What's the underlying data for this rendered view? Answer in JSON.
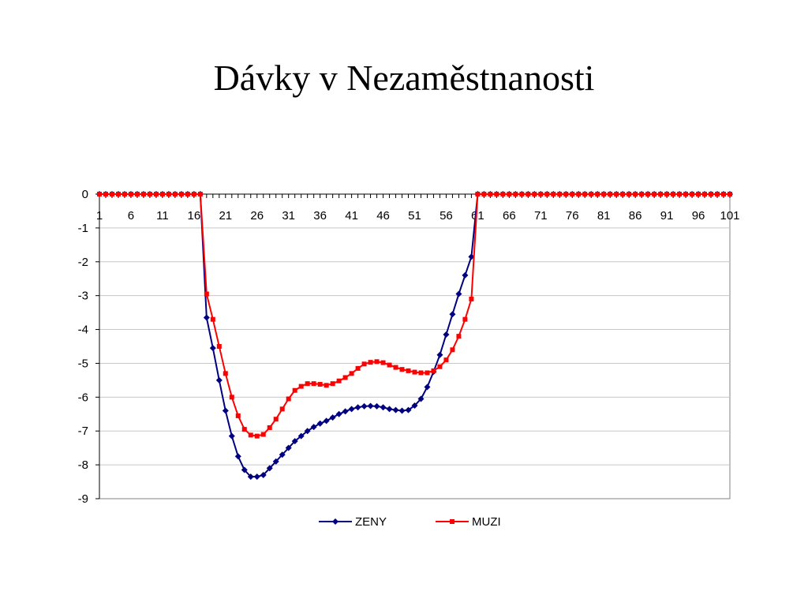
{
  "slide": {
    "title": "Dávky v Nezaměstnanosti"
  },
  "chart_data": {
    "type": "line",
    "title": "",
    "xlabel": "",
    "ylabel": "",
    "xlim": [
      1,
      101
    ],
    "ylim": [
      -9,
      0
    ],
    "x_tick_labels": [
      "1",
      "6",
      "11",
      "16",
      "21",
      "26",
      "31",
      "36",
      "41",
      "46",
      "51",
      "56",
      "61",
      "66",
      "71",
      "76",
      "81",
      "86",
      "91",
      "96",
      "101"
    ],
    "y_tick_labels": [
      "0",
      "-1",
      "-2",
      "-3",
      "-4",
      "-5",
      "-6",
      "-7",
      "-8",
      "-9"
    ],
    "grid": "horizontal",
    "legend_position": "bottom",
    "x": [
      1,
      2,
      3,
      4,
      5,
      6,
      7,
      8,
      9,
      10,
      11,
      12,
      13,
      14,
      15,
      16,
      17,
      18,
      19,
      20,
      21,
      22,
      23,
      24,
      25,
      26,
      27,
      28,
      29,
      30,
      31,
      32,
      33,
      34,
      35,
      36,
      37,
      38,
      39,
      40,
      41,
      42,
      43,
      44,
      45,
      46,
      47,
      48,
      49,
      50,
      51,
      52,
      53,
      54,
      55,
      56,
      57,
      58,
      59,
      60,
      61,
      62,
      63,
      64,
      65,
      66,
      67,
      68,
      69,
      70,
      71,
      72,
      73,
      74,
      75,
      76,
      77,
      78,
      79,
      80,
      81,
      82,
      83,
      84,
      85,
      86,
      87,
      88,
      89,
      90,
      91,
      92,
      93,
      94,
      95,
      96,
      97,
      98,
      99,
      100,
      101
    ],
    "series": [
      {
        "name": "ZENY",
        "color": "#000080",
        "marker": "diamond",
        "values": [
          0,
          0,
          0,
          0,
          0,
          0,
          0,
          0,
          0,
          0,
          0,
          0,
          0,
          0,
          0,
          0,
          0,
          -3.65,
          -4.55,
          -5.5,
          -6.4,
          -7.15,
          -7.75,
          -8.15,
          -8.35,
          -8.35,
          -8.3,
          -8.1,
          -7.9,
          -7.7,
          -7.5,
          -7.3,
          -7.15,
          -7.0,
          -6.88,
          -6.78,
          -6.7,
          -6.6,
          -6.5,
          -6.42,
          -6.35,
          -6.3,
          -6.27,
          -6.26,
          -6.27,
          -6.3,
          -6.35,
          -6.38,
          -6.4,
          -6.38,
          -6.25,
          -6.05,
          -5.7,
          -5.25,
          -4.75,
          -4.15,
          -3.55,
          -2.95,
          -2.4,
          -1.85,
          0,
          0,
          0,
          0,
          0,
          0,
          0,
          0,
          0,
          0,
          0,
          0,
          0,
          0,
          0,
          0,
          0,
          0,
          0,
          0,
          0,
          0,
          0,
          0,
          0,
          0,
          0,
          0,
          0,
          0,
          0,
          0,
          0,
          0,
          0,
          0,
          0,
          0,
          0,
          0,
          0
        ]
      },
      {
        "name": "MUZI",
        "color": "#ff0000",
        "marker": "square",
        "values": [
          0,
          0,
          0,
          0,
          0,
          0,
          0,
          0,
          0,
          0,
          0,
          0,
          0,
          0,
          0,
          0,
          0,
          -2.95,
          -3.7,
          -4.5,
          -5.3,
          -6.0,
          -6.55,
          -6.95,
          -7.12,
          -7.15,
          -7.1,
          -6.9,
          -6.65,
          -6.35,
          -6.05,
          -5.8,
          -5.68,
          -5.6,
          -5.6,
          -5.62,
          -5.65,
          -5.6,
          -5.52,
          -5.42,
          -5.3,
          -5.15,
          -5.02,
          -4.97,
          -4.95,
          -4.98,
          -5.05,
          -5.12,
          -5.18,
          -5.22,
          -5.26,
          -5.28,
          -5.28,
          -5.22,
          -5.1,
          -4.9,
          -4.6,
          -4.2,
          -3.7,
          -3.1,
          0,
          0,
          0,
          0,
          0,
          0,
          0,
          0,
          0,
          0,
          0,
          0,
          0,
          0,
          0,
          0,
          0,
          0,
          0,
          0,
          0,
          0,
          0,
          0,
          0,
          0,
          0,
          0,
          0,
          0,
          0,
          0,
          0,
          0,
          0,
          0,
          0,
          0,
          0,
          0,
          0
        ]
      }
    ]
  }
}
